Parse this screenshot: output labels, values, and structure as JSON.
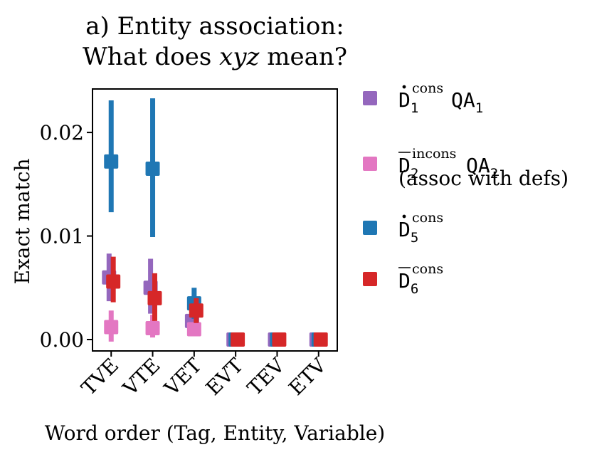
{
  "chart_data": {
    "type": "scatter",
    "title_lines": [
      "a) Entity association:",
      "What does ",
      "xyz",
      " mean?"
    ],
    "xlabel": "Word order (Tag, Entity, Variable)",
    "ylabel": "Exact match",
    "categories": [
      "TVE",
      "VTE",
      "VET",
      "EVT",
      "TEV",
      "ETV"
    ],
    "ylim": [
      -0.0011,
      0.0242
    ],
    "yticks": [
      0.0,
      0.01,
      0.02
    ],
    "ytick_labels": [
      "0.00",
      "0.01",
      "0.02"
    ],
    "legend_position": "right-outside",
    "series": [
      {
        "name": "D1cons QA1",
        "legend_main": "D",
        "legend_sup": "cons",
        "legend_sub": "1",
        "legend_suffix": "QA",
        "legend_suffix_sub": "1",
        "legend_mark": "dot",
        "legend_extra": "",
        "color": "#9467bd",
        "offset": -0.15,
        "values": [
          0.006,
          0.005,
          0.0018,
          0.0,
          0.0,
          0.0
        ],
        "err_low": [
          0.0037,
          0.0025,
          0.0008,
          0.0,
          0.0,
          0.0
        ],
        "err_high": [
          0.0083,
          0.0078,
          0.003,
          0.0,
          0.0,
          0.0
        ]
      },
      {
        "name": "D2incons QA2 (assoc with defs)",
        "legend_main": "D",
        "legend_sup": "incons",
        "legend_sub": "2",
        "legend_suffix": "QA",
        "legend_suffix_sub": "2",
        "legend_mark": "bar",
        "legend_extra": "(assoc with defs)",
        "color": "#e377c2",
        "offset": 0.0,
        "values": [
          0.0012,
          0.0011,
          0.001,
          0.0,
          0.0,
          0.0
        ],
        "err_low": [
          -0.0002,
          0.0002,
          0.0004,
          0.0,
          0.0,
          0.0
        ],
        "err_high": [
          0.0028,
          0.0024,
          0.0016,
          0.0,
          0.0,
          0.0
        ]
      },
      {
        "name": "D5cons",
        "legend_main": "D",
        "legend_sup": "cons",
        "legend_sub": "5",
        "legend_suffix": "",
        "legend_suffix_sub": "",
        "legend_mark": "dot",
        "legend_extra": "",
        "color": "#1f77b4",
        "offset": 0.0,
        "values": [
          0.0172,
          0.0165,
          0.0035,
          0.0,
          0.0,
          0.0
        ],
        "err_low": [
          0.0123,
          0.0099,
          0.002,
          0.0,
          0.0,
          0.0
        ],
        "err_high": [
          0.0231,
          0.0233,
          0.005,
          0.0,
          0.0,
          0.0
        ]
      },
      {
        "name": "D6cons",
        "legend_main": "D",
        "legend_sup": "cons",
        "legend_sub": "6",
        "legend_suffix": "",
        "legend_suffix_sub": "",
        "legend_mark": "bar",
        "legend_extra": "",
        "color": "#d62728",
        "offset": 0.15,
        "values": [
          0.0056,
          0.004,
          0.0028,
          0.0,
          0.0,
          0.0
        ],
        "err_low": [
          0.0036,
          0.0018,
          0.0016,
          0.0,
          0.0,
          0.0
        ],
        "err_high": [
          0.008,
          0.0064,
          0.004,
          0.0,
          0.0,
          0.0
        ]
      }
    ]
  }
}
